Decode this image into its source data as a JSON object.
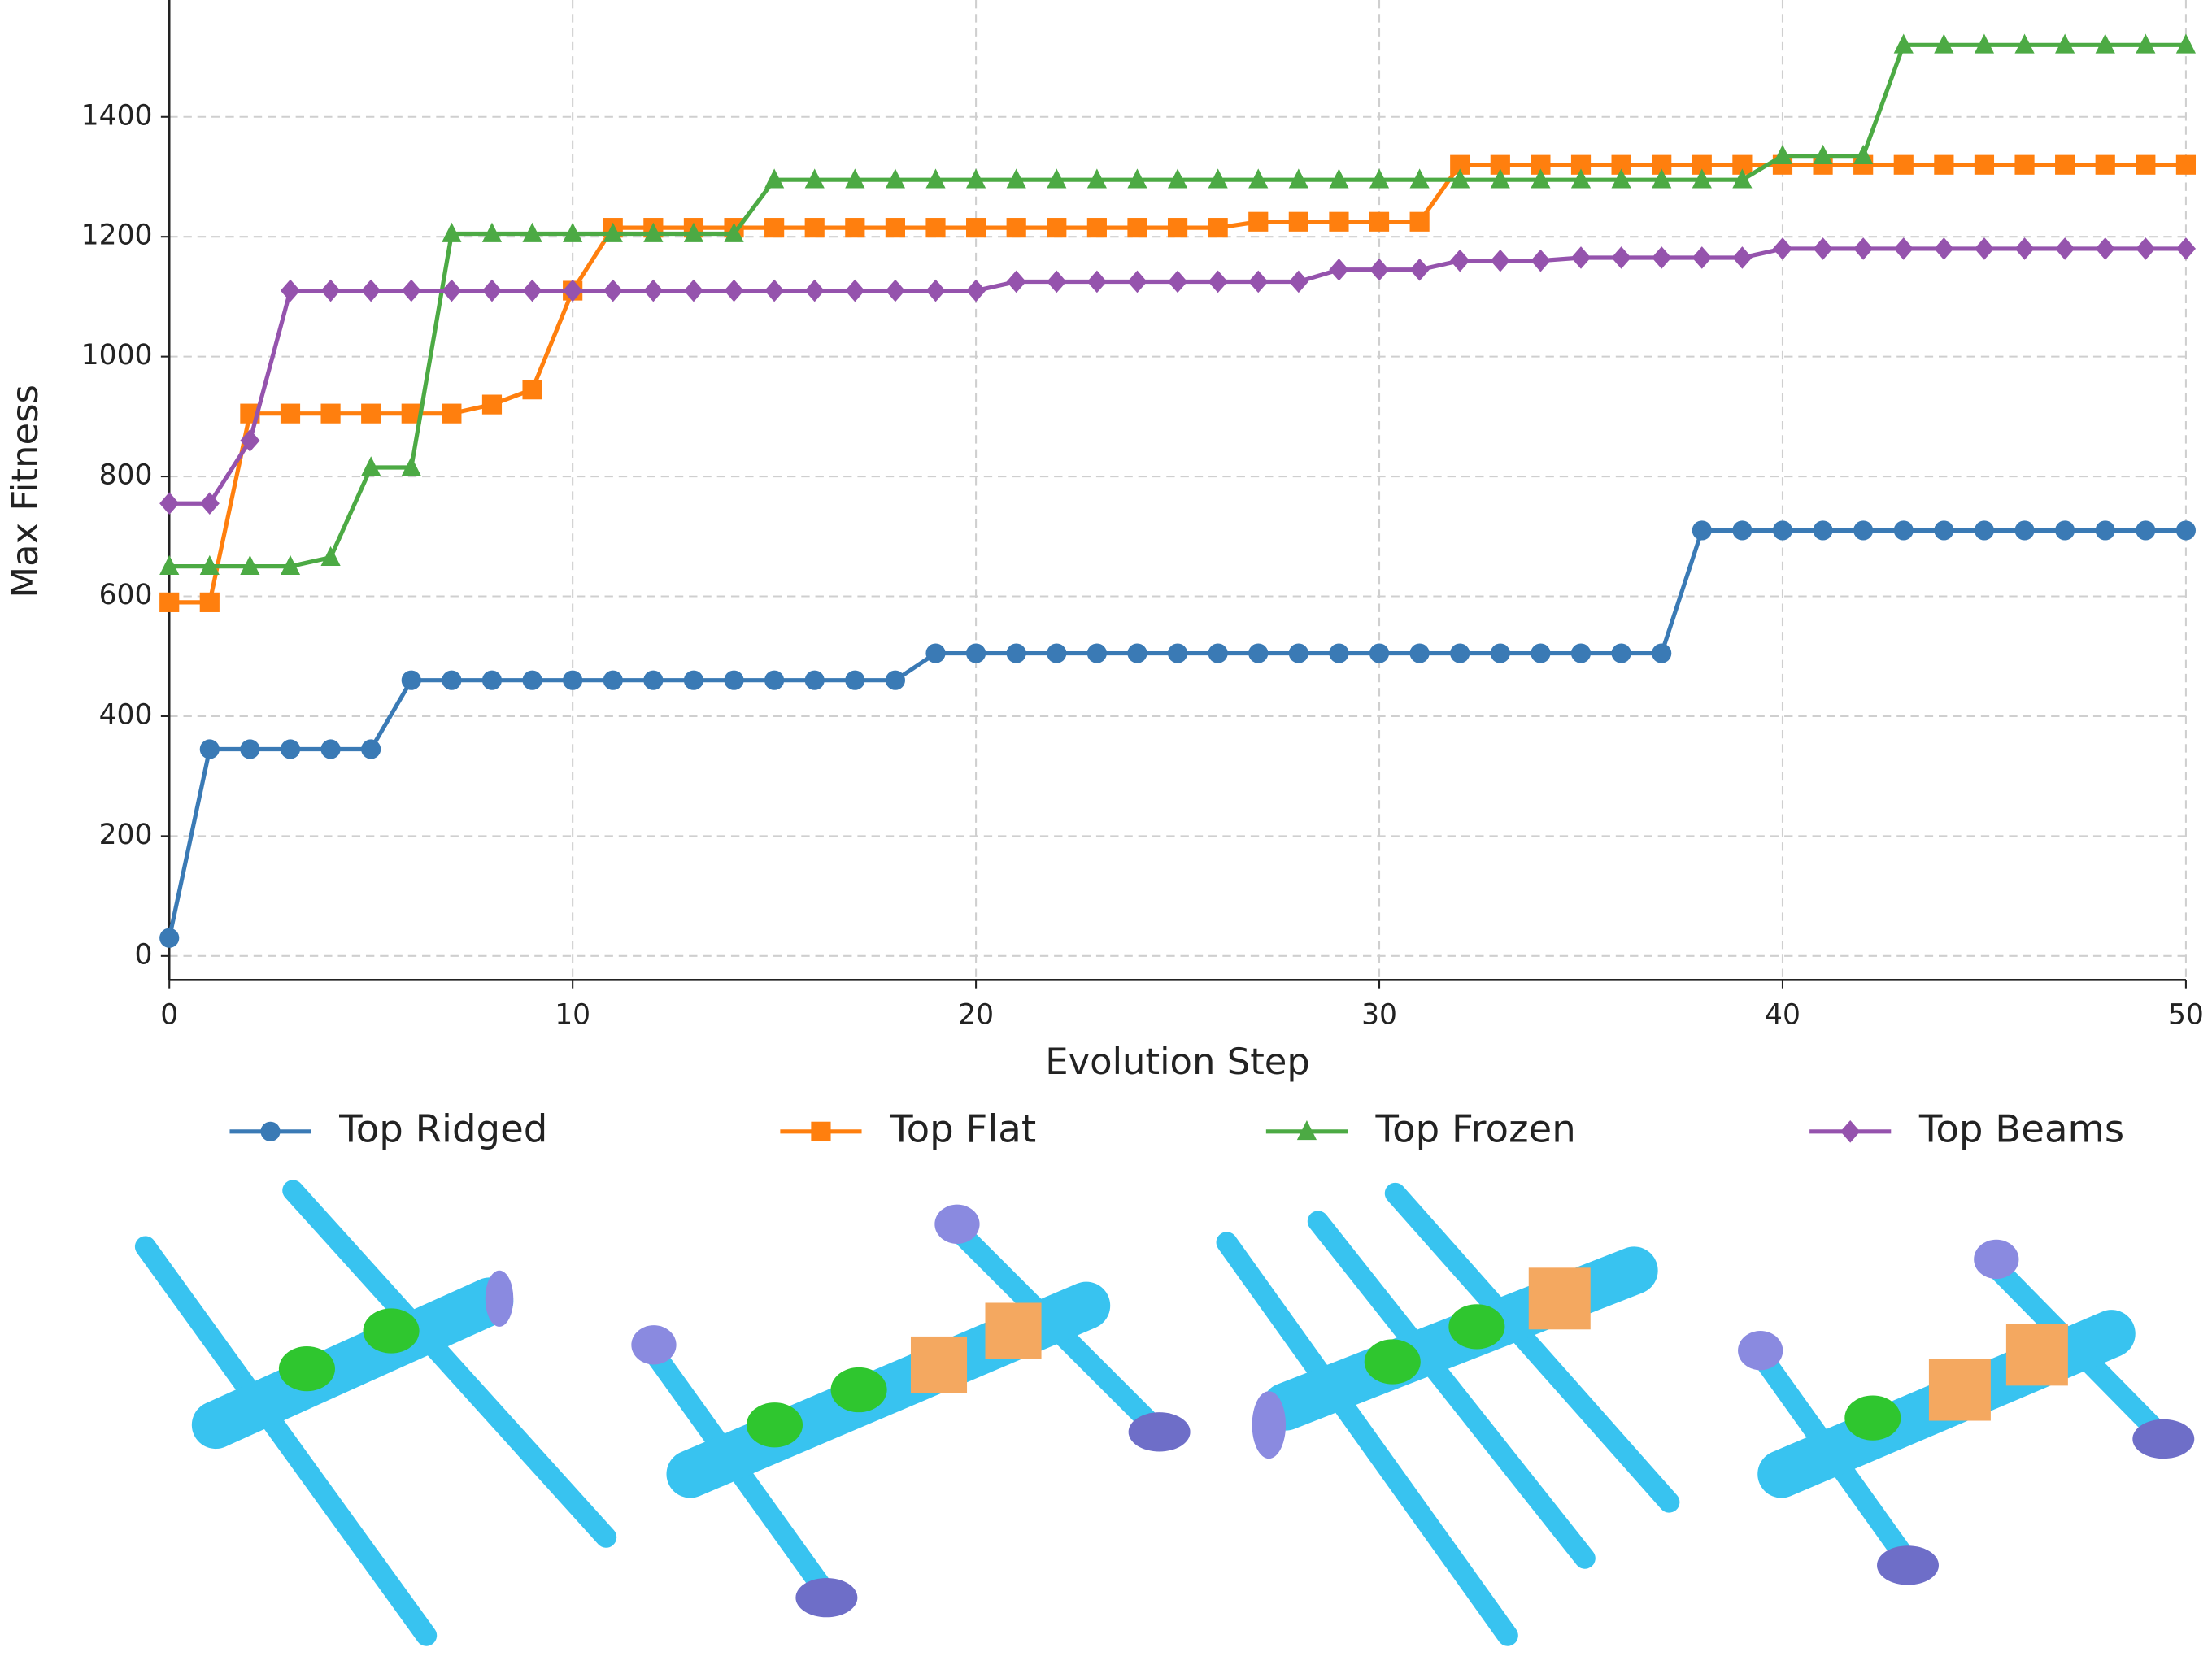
{
  "chart_data": {
    "type": "line",
    "xlabel": "Evolution Step",
    "ylabel": "Max Fitness",
    "x": [
      0,
      1,
      2,
      3,
      4,
      5,
      6,
      7,
      8,
      9,
      10,
      11,
      12,
      13,
      14,
      15,
      16,
      17,
      18,
      19,
      20,
      21,
      22,
      23,
      24,
      25,
      26,
      27,
      28,
      29,
      30,
      31,
      32,
      33,
      34,
      35,
      36,
      37,
      38,
      39,
      40,
      41,
      42,
      43,
      44,
      45,
      46,
      47,
      48,
      49,
      50
    ],
    "xlim": [
      0,
      50
    ],
    "xticks": [
      0,
      10,
      20,
      30,
      40,
      50
    ],
    "ylim": [
      -40,
      1595
    ],
    "yticks": [
      0,
      200,
      400,
      600,
      800,
      1000,
      1200,
      1400
    ],
    "grid": true,
    "legend": "bottom",
    "series": [
      {
        "name": "Top Ridged",
        "color": "#3a7ab5",
        "marker": "circle",
        "values": [
          30,
          345,
          345,
          345,
          345,
          345,
          460,
          460,
          460,
          460,
          460,
          460,
          460,
          460,
          460,
          460,
          460,
          460,
          460,
          505,
          505,
          505,
          505,
          505,
          505,
          505,
          505,
          505,
          505,
          505,
          505,
          505,
          505,
          505,
          505,
          505,
          505,
          505,
          710,
          710,
          710,
          710,
          710,
          710,
          710,
          710,
          710,
          710,
          710,
          710,
          710
        ]
      },
      {
        "name": "Top Flat",
        "color": "#ff7f0e",
        "marker": "square",
        "values": [
          590,
          590,
          905,
          905,
          905,
          905,
          905,
          905,
          920,
          945,
          1110,
          1215,
          1215,
          1215,
          1215,
          1215,
          1215,
          1215,
          1215,
          1215,
          1215,
          1215,
          1215,
          1215,
          1215,
          1215,
          1215,
          1225,
          1225,
          1225,
          1225,
          1225,
          1320,
          1320,
          1320,
          1320,
          1320,
          1320,
          1320,
          1320,
          1320,
          1320,
          1320,
          1320,
          1320,
          1320,
          1320,
          1320,
          1320,
          1320,
          1320
        ]
      },
      {
        "name": "Top Frozen",
        "color": "#4caa44",
        "marker": "triangle",
        "values": [
          650,
          650,
          650,
          650,
          665,
          815,
          815,
          1205,
          1205,
          1205,
          1205,
          1205,
          1205,
          1205,
          1205,
          1295,
          1295,
          1295,
          1295,
          1295,
          1295,
          1295,
          1295,
          1295,
          1295,
          1295,
          1295,
          1295,
          1295,
          1295,
          1295,
          1295,
          1295,
          1295,
          1295,
          1295,
          1295,
          1295,
          1295,
          1295,
          1335,
          1335,
          1335,
          1520,
          1520,
          1520,
          1520,
          1520,
          1520,
          1520,
          1520
        ]
      },
      {
        "name": "Top Beams",
        "color": "#9553ad",
        "marker": "diamond",
        "values": [
          755,
          755,
          860,
          1110,
          1110,
          1110,
          1110,
          1110,
          1110,
          1110,
          1110,
          1110,
          1110,
          1110,
          1110,
          1110,
          1110,
          1110,
          1110,
          1110,
          1110,
          1125,
          1125,
          1125,
          1125,
          1125,
          1125,
          1125,
          1125,
          1145,
          1145,
          1145,
          1160,
          1160,
          1160,
          1165,
          1165,
          1165,
          1165,
          1165,
          1180,
          1180,
          1180,
          1180,
          1180,
          1180,
          1180,
          1180,
          1180,
          1180,
          1180
        ]
      }
    ]
  }
}
